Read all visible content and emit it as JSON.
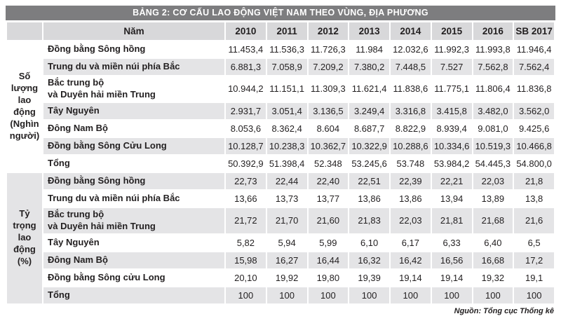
{
  "title": "BẢNG 2: CƠ CẤU LAO ĐỘNG VIỆT NAM THEO VÙNG, ĐỊA PHƯƠNG",
  "source_note": "Nguồn: Tổng cục Thống kê",
  "colors": {
    "title_bar": "#7d7d7f",
    "header_bg": "#d8d8da",
    "row_alt": "#e4e4e6",
    "text": "#221f20"
  },
  "header": {
    "year_label": "Năm",
    "years": [
      "2010",
      "2011",
      "2012",
      "2013",
      "2014",
      "2015",
      "2016",
      "SB 2017"
    ]
  },
  "sections": [
    {
      "label": "Số lượng lao động (Nghìn người)",
      "rows": [
        {
          "name": "Đồng bằng Sông hồng",
          "values": [
            "11.453,4",
            "11.536,3",
            "11.726,3",
            "11.984",
            "12.032,6",
            "11.992,3",
            "11.993,8",
            "11.946,4"
          ]
        },
        {
          "name": "Trung du và miền núi phía Bắc",
          "values": [
            "6.881,3",
            "7.058,9",
            "7.209,2",
            "7.380,2",
            "7.448,5",
            "7.527",
            "7.562,8",
            "7.562,4"
          ]
        },
        {
          "name": "Bắc trung bộ\nvà Duyên hải miền Trung",
          "values": [
            "10.944,2",
            "11.151,1",
            "11.309,3",
            "11.621,4",
            "11.838,6",
            "11.775,1",
            "11.806,4",
            "11.836,8"
          ]
        },
        {
          "name": "Tây Nguyên",
          "values": [
            "2.931,7",
            "3.051,4",
            "3.136,5",
            "3.249,4",
            "3.316,8",
            "3.415,8",
            "3.482,0",
            "3.562,0"
          ]
        },
        {
          "name": "Đông Nam Bộ",
          "values": [
            "8.053,6",
            "8.362,4",
            "8.604",
            "8.687,7",
            "8.822,9",
            "8.939,4",
            "9.081,0",
            "9.425,6"
          ]
        },
        {
          "name": "Đồng bằng Sông Cửu Long",
          "values": [
            "10.128,7",
            "10.238,3",
            "10.362,7",
            "10.322,9",
            "10.288,6",
            "10.334,6",
            "10.519,3",
            "10.466,8"
          ]
        },
        {
          "name": "Tổng",
          "values": [
            "50.392,9",
            "51.398,4",
            "52.348",
            "53.245,6",
            "53.748",
            "53.984,2",
            "54.445,3",
            "54.800,0"
          ]
        }
      ]
    },
    {
      "label": "Tỷ trọng lao động (%)",
      "rows": [
        {
          "name": "Đồng bằng Sông hồng",
          "values": [
            "22,73",
            "22,44",
            "22,40",
            "22,51",
            "22,39",
            "22,21",
            "22,03",
            "21,8"
          ]
        },
        {
          "name": "Trung du và miền núi phía Bắc",
          "values": [
            "13,66",
            "13,73",
            "13,77",
            "13,86",
            "13,86",
            "13,94",
            "13,89",
            "13,8"
          ]
        },
        {
          "name": "Bắc trung bộ\nvà Duyên hải miền Trung",
          "values": [
            "21,72",
            "21,70",
            "21,60",
            "21,83",
            "22,03",
            "21,81",
            "21,68",
            "21,6"
          ]
        },
        {
          "name": "Tây Nguyên",
          "values": [
            "5,82",
            "5,94",
            "5,99",
            "6,10",
            "6,17",
            "6,33",
            "6,40",
            "6,5"
          ]
        },
        {
          "name": "Đông Nam Bộ",
          "values": [
            "15,98",
            "16,27",
            "16,44",
            "16,32",
            "16,42",
            "16,56",
            "16,68",
            "17,2"
          ]
        },
        {
          "name": "Đồng bằng Sông cửu Long",
          "values": [
            "20,10",
            "19,92",
            "19,80",
            "19,39",
            "19,14",
            "19,14",
            "19,32",
            "19,1"
          ]
        },
        {
          "name": "Tổng",
          "values": [
            "100",
            "100",
            "100",
            "100",
            "100",
            "100",
            "100",
            "100"
          ]
        }
      ]
    }
  ]
}
